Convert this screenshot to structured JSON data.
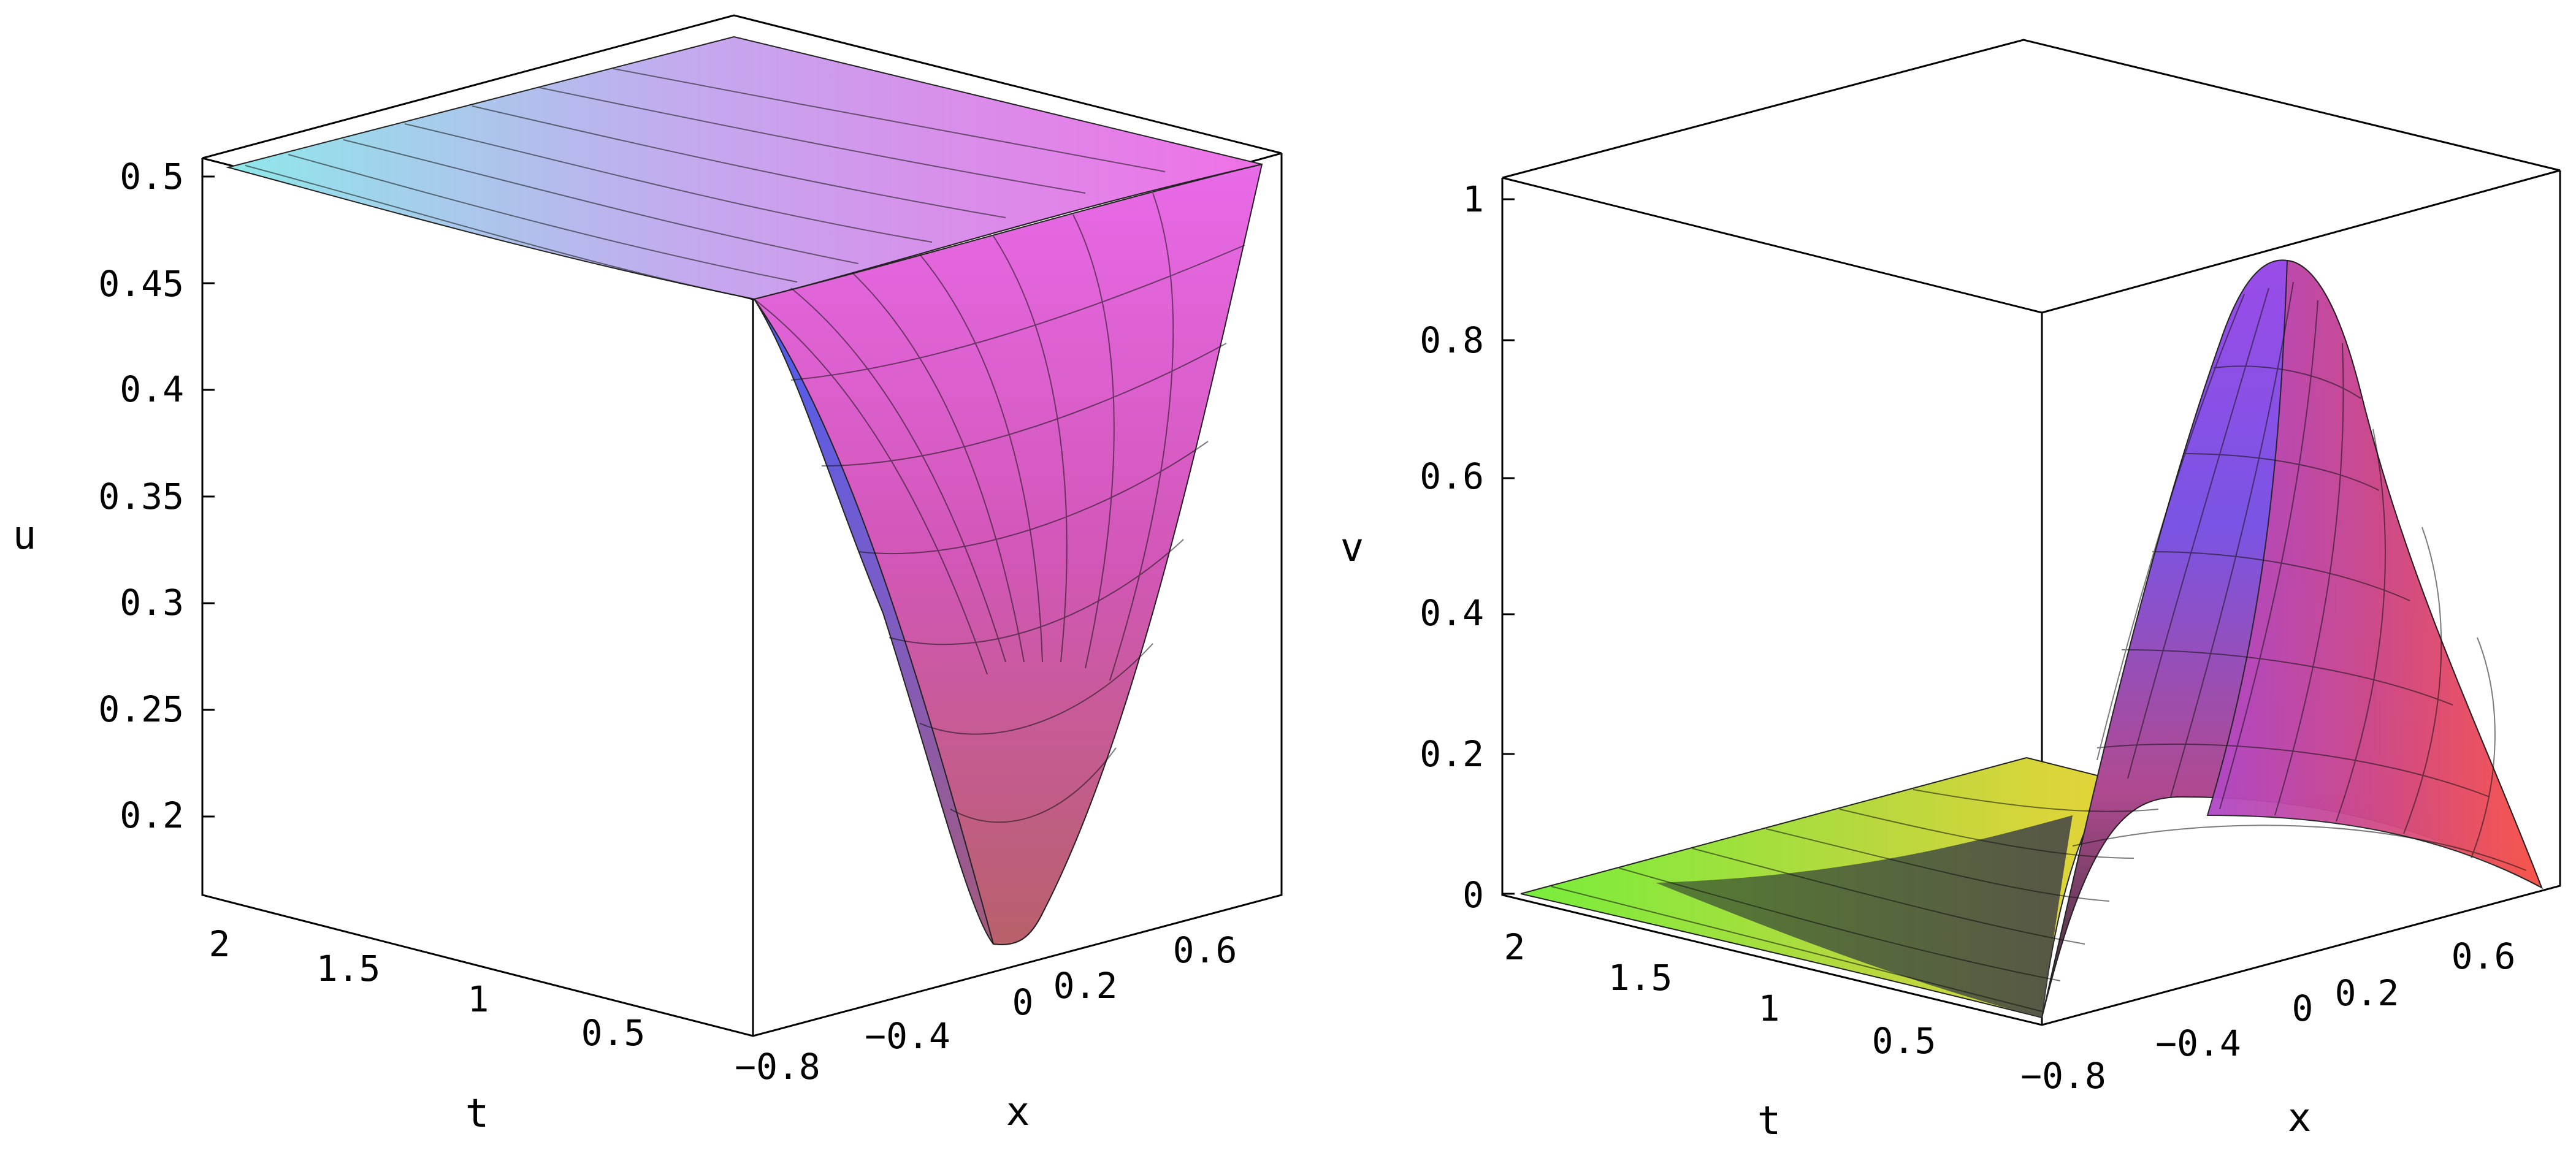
{
  "chart_data": [
    {
      "type": "surface3d",
      "title": "",
      "z_label": "u",
      "t_label": "t",
      "x_label": "x",
      "z_ticks": [
        "0.5",
        "0.45",
        "0.4",
        "0.35",
        "0.3",
        "0.25",
        "0.2"
      ],
      "t_ticks": [
        "2",
        "1.5",
        "1",
        "0.5"
      ],
      "x_ticks": [
        "-0.8",
        "-0.4",
        "0",
        "0.2",
        "0.6"
      ],
      "t_range": [
        0,
        2
      ],
      "x_range": [
        -1,
        1
      ],
      "z_range": [
        0.15,
        0.5
      ],
      "surface_samples": [
        {
          "x": -1,
          "t": 0,
          "z": 0.5
        },
        {
          "x": 0,
          "t": 0,
          "z": 0.15
        },
        {
          "x": 1,
          "t": 0,
          "z": 0.5
        },
        {
          "x": 0,
          "t": 0.5,
          "z": 0.3
        },
        {
          "x": 0,
          "t": 1,
          "z": 0.45
        },
        {
          "x": 0,
          "t": 2,
          "z": 0.5
        }
      ],
      "colormap": [
        "#44e4e4",
        "#4f64f0",
        "#9a5ad0",
        "#e64ee0",
        "#c8606a"
      ]
    },
    {
      "type": "surface3d",
      "title": "",
      "z_label": "v",
      "t_label": "t",
      "x_label": "x",
      "z_ticks": [
        "1",
        "0.8",
        "0.6",
        "0.4",
        "0.2",
        "0"
      ],
      "t_ticks": [
        "2",
        "1.5",
        "1",
        "0.5"
      ],
      "x_ticks": [
        "-0.8",
        "-0.4",
        "0",
        "0.2",
        "0.6"
      ],
      "t_range": [
        0,
        2
      ],
      "x_range": [
        -1,
        1
      ],
      "z_range": [
        0,
        1
      ],
      "surface_samples": [
        {
          "x": -1,
          "t": 0,
          "z": 0
        },
        {
          "x": 0,
          "t": 0,
          "z": 0.95
        },
        {
          "x": 1,
          "t": 0,
          "z": 0
        },
        {
          "x": 0,
          "t": 0.5,
          "z": 0.5
        },
        {
          "x": 0,
          "t": 1,
          "z": 0.08
        },
        {
          "x": 0,
          "t": 2,
          "z": 0
        }
      ],
      "colormap": [
        "#80f040",
        "#c8e040",
        "#404040",
        "#6050e0",
        "#a040e0",
        "#e04060",
        "#ff5040"
      ]
    }
  ]
}
